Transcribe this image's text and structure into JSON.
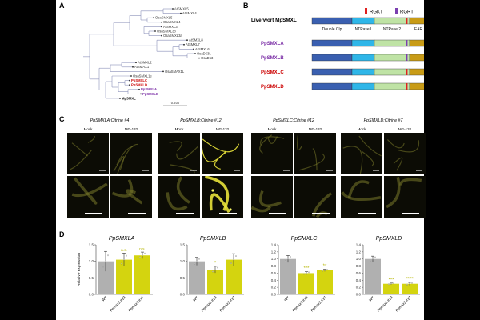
{
  "panels": {
    "a": "A",
    "b": "B",
    "c": "C",
    "d": "D"
  },
  "tree": {
    "taxa": [
      {
        "name": "AtSMXL5",
        "cls": ""
      },
      {
        "name": "AtSMXL4",
        "cls": ""
      },
      {
        "name": "OsaSMXL5",
        "cls": ""
      },
      {
        "name": "OsaSMXL4",
        "cls": ""
      },
      {
        "name": "AtSMXL3",
        "cls": ""
      },
      {
        "name": "OsaSMXL3b",
        "cls": ""
      },
      {
        "name": "OsaSMXL3a",
        "cls": ""
      },
      {
        "name": "AtSMXL8",
        "cls": ""
      },
      {
        "name": "AtSMXL7",
        "cls": ""
      },
      {
        "name": "AtSMXL6",
        "cls": ""
      },
      {
        "name": "OsaD53L",
        "cls": ""
      },
      {
        "name": "OsaD53",
        "cls": ""
      },
      {
        "name": "AtSMXL2",
        "cls": ""
      },
      {
        "name": "AtSMAX1",
        "cls": ""
      },
      {
        "name": "OsaSMAX1L",
        "cls": ""
      },
      {
        "name": "OsaSMXL1e",
        "cls": ""
      },
      {
        "name": "PpSMXLC",
        "cls": "red"
      },
      {
        "name": "PpSMXLD",
        "cls": "red"
      },
      {
        "name": "PpSMXLA",
        "cls": "purple"
      },
      {
        "name": "PpSMXLB",
        "cls": "purple"
      },
      {
        "name": "MpSMXL",
        "cls": "black"
      }
    ],
    "scale": "0.200"
  },
  "domains": {
    "legend": [
      {
        "label": "RGKT",
        "color": "#e0201f"
      },
      {
        "label": "RGRT",
        "color": "#7b3fb0"
      }
    ],
    "header_title": "Liverwort MpSMXL",
    "domain_labels": [
      "Double Clp",
      "NTPase I",
      "NTPase 2",
      "EAR"
    ],
    "proteins": [
      {
        "name": "PpSMXLA",
        "color": "#7b2fa6",
        "motif": "RGRT"
      },
      {
        "name": "PpSMXLB",
        "color": "#7b2fa6",
        "motif": "RGRT"
      },
      {
        "name": "PpSMXLC",
        "color": "#cc0000",
        "motif": "RGKT"
      },
      {
        "name": "PpSMXLD",
        "color": "#cc0000",
        "motif": "RGKT"
      }
    ],
    "colors": {
      "clp": "#3a5fb0",
      "ntp1": "#2fb6e8",
      "ntp2": "#bfe3a5",
      "ear": "#c89b16"
    }
  },
  "microscopy": {
    "groups": [
      {
        "title": "PpSMXLA:Citrine #4",
        "mock": "Mock",
        "mg": "MG-132"
      },
      {
        "title": "PpSMXLB:Citrine #12",
        "mock": "Mock",
        "mg": "MG-132"
      },
      {
        "title": "PpSMXLC:Citrine #12",
        "mock": "Mock",
        "mg": "MG-132"
      },
      {
        "title": "PpSMXLD:Citrine #7",
        "mock": "Mock",
        "mg": "MG-132"
      }
    ]
  },
  "chart_data": [
    {
      "type": "bar",
      "title": "PpSMXLA",
      "ylabel": "Relative expression",
      "categories": [
        "WT",
        "Ppmax2 #13",
        "Ppmax2 #17"
      ],
      "values": [
        1.0,
        1.05,
        1.18
      ],
      "errors": [
        0.3,
        0.2,
        0.1
      ],
      "ylim": [
        0,
        1.5
      ],
      "annotations": [
        "",
        "n.s.",
        "n.s."
      ]
    },
    {
      "type": "bar",
      "title": "PpSMXLB",
      "ylabel": "",
      "categories": [
        "WT",
        "Ppmax2 #13",
        "Ppmax2 #17"
      ],
      "values": [
        1.0,
        0.75,
        1.05
      ],
      "errors": [
        0.12,
        0.1,
        0.18
      ],
      "ylim": [
        0,
        1.5
      ],
      "annotations": [
        "",
        "*",
        ""
      ]
    },
    {
      "type": "bar",
      "title": "PpSMXLC",
      "ylabel": "",
      "categories": [
        "WT",
        "Ppmax2 #13",
        "Ppmax2 #17"
      ],
      "values": [
        1.0,
        0.6,
        0.68
      ],
      "errors": [
        0.1,
        0.04,
        0.03
      ],
      "ylim": [
        0,
        1.4
      ],
      "annotations": [
        "",
        "***",
        "**"
      ]
    },
    {
      "type": "bar",
      "title": "PpSMXLD",
      "ylabel": "",
      "categories": [
        "WT",
        "Ppmax2 #13",
        "Ppmax2 #17"
      ],
      "values": [
        1.0,
        0.3,
        0.3
      ],
      "errors": [
        0.08,
        0.02,
        0.04
      ],
      "ylim": [
        0,
        1.4
      ],
      "annotations": [
        "",
        "***",
        "****"
      ]
    }
  ]
}
